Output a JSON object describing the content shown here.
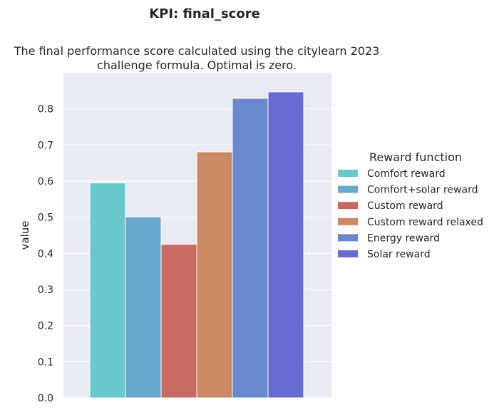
{
  "chart_data": {
    "type": "bar",
    "title": "KPI: final_score",
    "subtitle_lines": [
      "The final performance score calculated using the citylearn 2023",
      "challenge formula. Optimal is zero."
    ],
    "xlabel": "",
    "ylabel": "value",
    "ylim": [
      0,
      0.9
    ],
    "yticks": [
      0.0,
      0.1,
      0.2,
      0.3,
      0.4,
      0.5,
      0.6,
      0.7,
      0.8
    ],
    "grid": true,
    "legend": {
      "title": "Reward function",
      "placement": "right"
    },
    "series": [
      {
        "name": "Comfort reward",
        "value": 0.595,
        "color": "#6ac7cc"
      },
      {
        "name": "Comfort+solar reward",
        "value": 0.501,
        "color": "#67a7cb"
      },
      {
        "name": "Custom reward",
        "value": 0.425,
        "color": "#c76a63"
      },
      {
        "name": "Custom reward relaxed",
        "value": 0.681,
        "color": "#cb8a66"
      },
      {
        "name": "Energy reward",
        "value": 0.829,
        "color": "#6a88cc"
      },
      {
        "name": "Solar reward",
        "value": 0.847,
        "color": "#686bcf"
      }
    ]
  }
}
